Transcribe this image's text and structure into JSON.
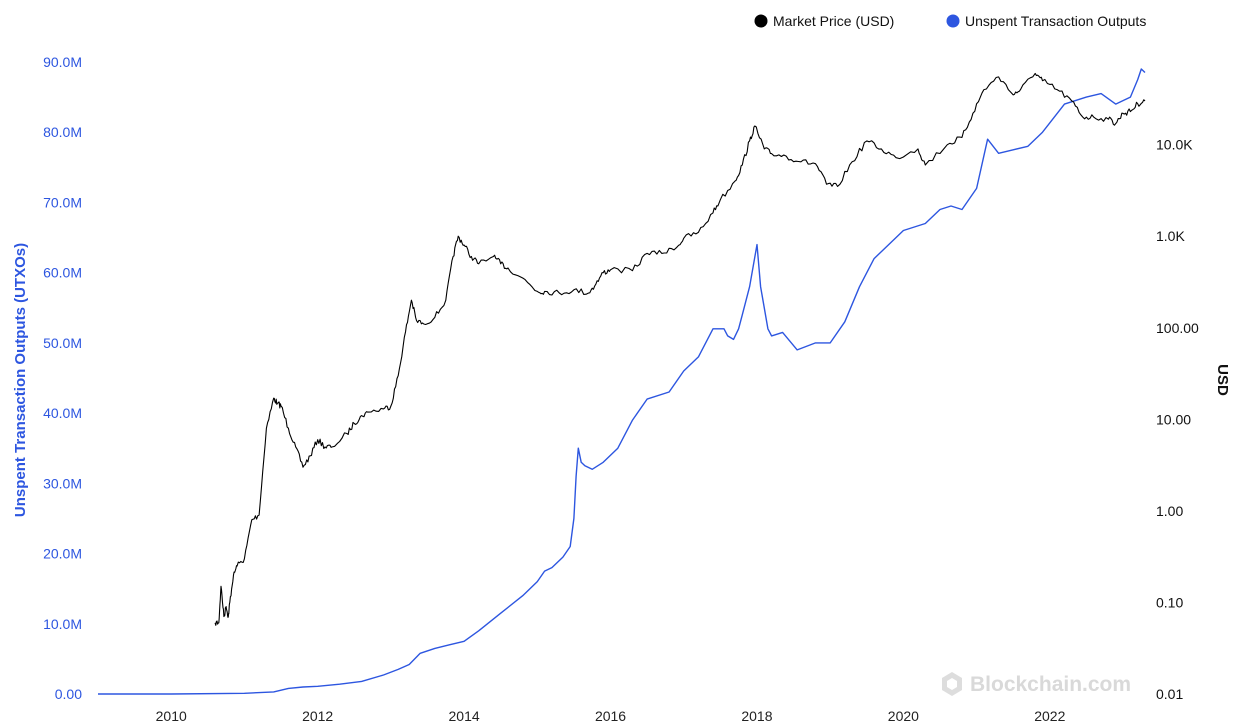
{
  "chart_data": {
    "type": "line",
    "legend_placement": "top-right",
    "grid": false,
    "x_axis": {
      "ticks": [
        "2010",
        "2012",
        "2014",
        "2016",
        "2018",
        "2020",
        "2022"
      ],
      "range": [
        2009.0,
        2023.3
      ]
    },
    "y_left": {
      "label": "Unspent Transaction Outputs (UTXOs)",
      "ticks": [
        "0.00",
        "10.0M",
        "20.0M",
        "30.0M",
        "40.0M",
        "50.0M",
        "60.0M",
        "70.0M",
        "80.0M",
        "90.0M"
      ],
      "range": [
        0,
        90000000
      ],
      "color": "#2d56e0"
    },
    "y_right": {
      "label": "USD",
      "scale": "log",
      "ticks": [
        "0.01",
        "0.10",
        "1.00",
        "10.00",
        "100.00",
        "1.0K",
        "10.0K"
      ],
      "range": [
        0.01,
        80000
      ],
      "color": "#111111"
    },
    "watermark": "Blockchain.com",
    "series": [
      {
        "name": "Market Price (USD)",
        "axis": "right",
        "color": "#000000",
        "x": [
          2010.6,
          2010.65,
          2010.68,
          2010.72,
          2010.75,
          2010.78,
          2010.8,
          2010.85,
          2010.9,
          2011.0,
          2011.1,
          2011.2,
          2011.3,
          2011.4,
          2011.45,
          2011.5,
          2011.6,
          2011.7,
          2011.8,
          2011.9,
          2012.0,
          2012.1,
          2012.2,
          2012.4,
          2012.5,
          2012.6,
          2012.7,
          2012.9,
          2013.0,
          2013.1,
          2013.2,
          2013.28,
          2013.35,
          2013.45,
          2013.6,
          2013.75,
          2013.85,
          2013.92,
          2014.0,
          2014.1,
          2014.2,
          2014.4,
          2014.5,
          2014.6,
          2014.8,
          2015.0,
          2015.1,
          2015.3,
          2015.5,
          2015.7,
          2015.8,
          2015.9,
          2016.0,
          2016.3,
          2016.5,
          2016.7,
          2016.9,
          2017.0,
          2017.2,
          2017.4,
          2017.5,
          2017.7,
          2017.8,
          2017.9,
          2017.97,
          2018.1,
          2018.2,
          2018.4,
          2018.6,
          2018.8,
          2018.95,
          2019.1,
          2019.3,
          2019.5,
          2019.7,
          2019.9,
          2020.2,
          2020.3,
          2020.6,
          2020.8,
          2020.95,
          2021.1,
          2021.3,
          2021.5,
          2021.6,
          2021.8,
          2021.9,
          2022.1,
          2022.3,
          2022.45,
          2022.6,
          2022.8,
          2022.9,
          2023.0,
          2023.1,
          2023.2,
          2023.3
        ],
        "y": [
          0.06,
          0.06,
          0.15,
          0.07,
          0.09,
          0.07,
          0.1,
          0.2,
          0.25,
          0.3,
          0.8,
          0.9,
          8.0,
          17.0,
          15.0,
          14.0,
          8.0,
          5.0,
          3.0,
          4.0,
          6.0,
          5.0,
          5.0,
          7.0,
          9.0,
          11.0,
          12.0,
          13.0,
          14.0,
          30.0,
          90.0,
          200.0,
          120.0,
          110.0,
          130.0,
          200.0,
          600.0,
          1000.0,
          800.0,
          600.0,
          500.0,
          600.0,
          500.0,
          450.0,
          350.0,
          250.0,
          250.0,
          240.0,
          260.0,
          240.0,
          300.0,
          400.0,
          430.0,
          420.0,
          650.0,
          650.0,
          750.0,
          950.0,
          1100.0,
          1800.0,
          2500.0,
          4000.0,
          6000.0,
          11000.0,
          16000.0,
          9000.0,
          8000.0,
          7500.0,
          6500.0,
          6200.0,
          3700.0,
          3500.0,
          6500.0,
          11000.0,
          9000.0,
          7200.0,
          9000.0,
          6000.0,
          10000.0,
          12000.0,
          22000.0,
          40000.0,
          55000.0,
          35000.0,
          40000.0,
          60000.0,
          50000.0,
          40000.0,
          30000.0,
          20000.0,
          20000.0,
          19000.0,
          17000.0,
          22000.0,
          23000.0,
          28000.0,
          30000.0
        ]
      },
      {
        "name": "Unspent Transaction Outputs",
        "axis": "left",
        "color": "#2d56e0",
        "x": [
          2009.0,
          2010.0,
          2011.0,
          2011.4,
          2011.6,
          2011.8,
          2012.0,
          2012.3,
          2012.6,
          2012.9,
          2013.1,
          2013.25,
          2013.4,
          2013.6,
          2013.8,
          2014.0,
          2014.2,
          2014.5,
          2014.8,
          2015.0,
          2015.1,
          2015.2,
          2015.35,
          2015.45,
          2015.5,
          2015.53,
          2015.56,
          2015.6,
          2015.65,
          2015.75,
          2015.9,
          2016.1,
          2016.3,
          2016.5,
          2016.8,
          2017.0,
          2017.2,
          2017.4,
          2017.55,
          2017.6,
          2017.68,
          2017.75,
          2017.8,
          2017.9,
          2018.0,
          2018.05,
          2018.15,
          2018.2,
          2018.35,
          2018.55,
          2018.8,
          2019.0,
          2019.2,
          2019.4,
          2019.6,
          2019.8,
          2020.0,
          2020.3,
          2020.5,
          2020.65,
          2020.8,
          2021.0,
          2021.15,
          2021.3,
          2021.5,
          2021.7,
          2021.9,
          2022.2,
          2022.5,
          2022.7,
          2022.9,
          2023.0,
          2023.1,
          2023.2,
          2023.25,
          2023.3
        ],
        "y": [
          0,
          0,
          100000,
          300000,
          800000,
          1000000,
          1100000,
          1400000,
          1800000,
          2700000,
          3500000,
          4200000,
          5800000,
          6500000,
          7000000,
          7500000,
          9000000,
          11500000,
          14000000,
          16000000,
          17500000,
          18000000,
          19500000,
          21000000,
          25000000,
          31000000,
          35000000,
          33000000,
          32500000,
          32000000,
          33000000,
          35000000,
          39000000,
          42000000,
          43000000,
          46000000,
          48000000,
          52000000,
          52000000,
          51000000,
          50500000,
          52000000,
          54000000,
          58000000,
          64000000,
          58000000,
          52000000,
          51000000,
          51500000,
          49000000,
          50000000,
          50000000,
          53000000,
          58000000,
          62000000,
          64000000,
          66000000,
          67000000,
          69000000,
          69500000,
          69000000,
          72000000,
          79000000,
          77000000,
          77500000,
          78000000,
          80000000,
          84000000,
          85000000,
          85500000,
          84000000,
          84500000,
          85000000,
          87500000,
          89000000,
          88500000
        ]
      }
    ]
  }
}
